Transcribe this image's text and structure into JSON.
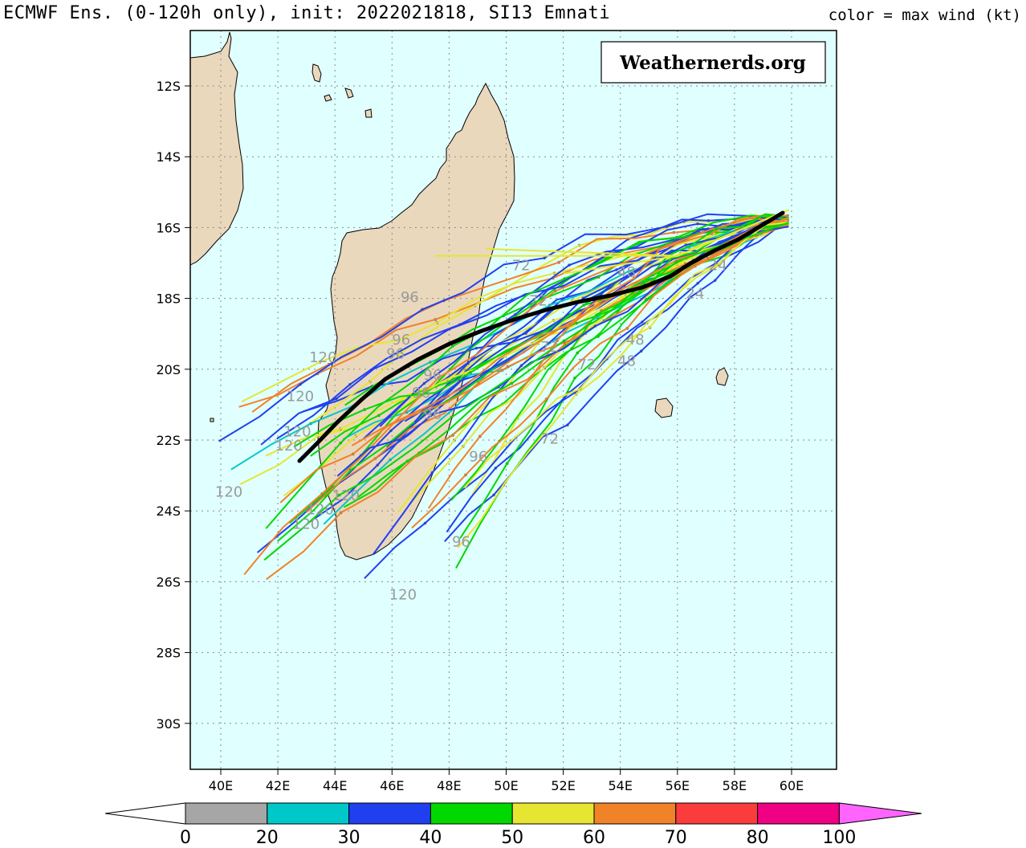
{
  "header": {
    "title": "ECMWF Ens. (0-120h only), init: 2022021818, SI13 Emnati",
    "color_note": "color = max wind (kt)"
  },
  "watermark": "Weathernerds.org",
  "axes": {
    "lat_labels": [
      "12S",
      "14S",
      "16S",
      "18S",
      "20S",
      "22S",
      "24S",
      "26S",
      "28S",
      "30S"
    ],
    "lon_labels": [
      "40E",
      "42E",
      "44E",
      "46E",
      "48E",
      "50E",
      "52E",
      "54E",
      "56E",
      "58E",
      "60E"
    ]
  },
  "colorbar": {
    "ticks": [
      "0",
      "20",
      "30",
      "40",
      "50",
      "60",
      "70",
      "80",
      "100"
    ],
    "colors": [
      "#a6a6a6",
      "#00c8c8",
      "#2040f0",
      "#00d800",
      "#e6e632",
      "#f08228",
      "#fa3c3c",
      "#f00082",
      "#ff64ff"
    ]
  },
  "colors": {
    "ocean": "#e0ffff",
    "land": "#ead8bd",
    "mean_track": "#000000",
    "hour_label": "#9a9a9a"
  },
  "hour_labels": [
    {
      "text": "96",
      "lon": 46.3,
      "lat": -18.1
    },
    {
      "text": "120",
      "lon": 43.1,
      "lat": -19.8
    },
    {
      "text": "96",
      "lon": 45.8,
      "lat": -19.7
    },
    {
      "text": "96",
      "lon": 46.0,
      "lat": -19.3
    },
    {
      "text": "120",
      "lon": 42.3,
      "lat": -20.9
    },
    {
      "text": "120",
      "lon": 42.2,
      "lat": -21.9
    },
    {
      "text": "120",
      "lon": 41.9,
      "lat": -22.3
    },
    {
      "text": "120",
      "lon": 39.8,
      "lat": -23.6
    },
    {
      "text": "120",
      "lon": 43.0,
      "lat": -24.1
    },
    {
      "text": "120",
      "lon": 42.5,
      "lat": -24.5
    },
    {
      "text": "120",
      "lon": 43.9,
      "lat": -23.7
    },
    {
      "text": "96",
      "lon": 47.1,
      "lat": -20.3
    },
    {
      "text": "96",
      "lon": 46.7,
      "lat": -20.8
    },
    {
      "text": "96",
      "lon": 47.1,
      "lat": -21.4
    },
    {
      "text": "96",
      "lon": 48.7,
      "lat": -22.6
    },
    {
      "text": "96",
      "lon": 48.1,
      "lat": -25.0
    },
    {
      "text": "120",
      "lon": 45.9,
      "lat": -26.5
    },
    {
      "text": "72",
      "lon": 50.2,
      "lat": -17.2
    },
    {
      "text": "72",
      "lon": 50.8,
      "lat": -18.2
    },
    {
      "text": "72",
      "lon": 51.2,
      "lat": -19.5
    },
    {
      "text": "72",
      "lon": 52.5,
      "lat": -20.0
    },
    {
      "text": "72",
      "lon": 51.2,
      "lat": -22.1
    },
    {
      "text": "48",
      "lon": 53.9,
      "lat": -17.4
    },
    {
      "text": "48",
      "lon": 54.2,
      "lat": -19.3
    },
    {
      "text": "48",
      "lon": 53.9,
      "lat": -19.9
    },
    {
      "text": "24",
      "lon": 56.3,
      "lat": -18.0
    },
    {
      "text": "24",
      "lon": 57.1,
      "lat": -17.2
    }
  ]
}
